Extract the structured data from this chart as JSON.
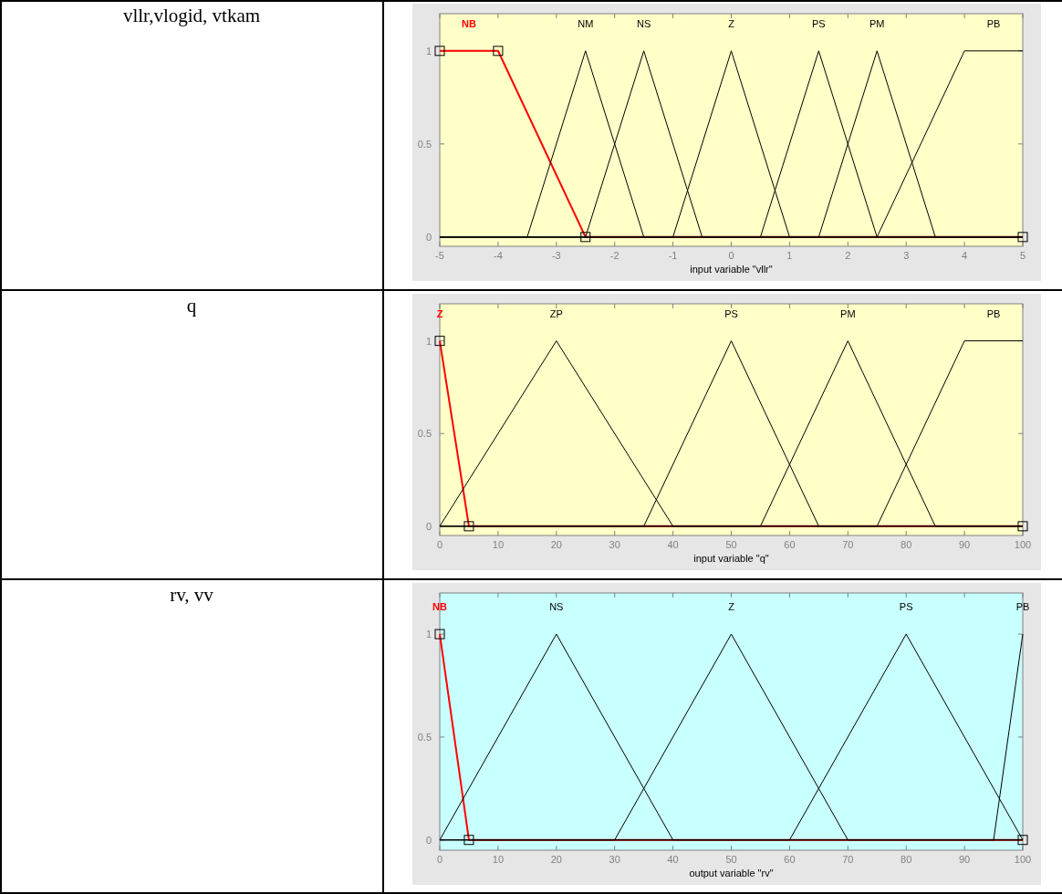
{
  "chart_data": [
    {
      "type": "line",
      "ylabel": "vllr,vlogid, vtkam",
      "xlabel": "input variable \"vllr\"",
      "xlim": [
        -5,
        5
      ],
      "xticks": [
        -5,
        -4,
        -3,
        -2,
        -1,
        0,
        1,
        2,
        3,
        4,
        5
      ],
      "ylim": [
        -0.05,
        1.2
      ],
      "yticks": [
        0,
        0.5,
        1
      ],
      "series": [
        {
          "name": "NB",
          "color": "#ff0000",
          "marker": "square",
          "x": [
            -5,
            -4,
            -2.5,
            5
          ],
          "values": [
            1,
            1,
            0,
            0
          ]
        },
        {
          "name": "NM",
          "color": "#000000",
          "x": [
            -5,
            -3.5,
            -2.5,
            -1.5,
            5
          ],
          "values": [
            0,
            0,
            1,
            0,
            0
          ]
        },
        {
          "name": "NS",
          "color": "#000000",
          "x": [
            -5,
            -2.5,
            -1.5,
            -0.5,
            5
          ],
          "values": [
            0,
            0,
            1,
            0,
            0
          ]
        },
        {
          "name": "Z",
          "color": "#000000",
          "x": [
            -5,
            -1,
            0,
            1,
            5
          ],
          "values": [
            0,
            0,
            1,
            0,
            0
          ]
        },
        {
          "name": "PS",
          "color": "#000000",
          "x": [
            -5,
            0.5,
            1.5,
            2.5,
            5
          ],
          "values": [
            0,
            0,
            1,
            0,
            0
          ]
        },
        {
          "name": "PM",
          "color": "#000000",
          "x": [
            -5,
            1.5,
            2.5,
            3.5,
            5
          ],
          "values": [
            0,
            0,
            1,
            0,
            0
          ]
        },
        {
          "name": "PB",
          "color": "#000000",
          "x": [
            -5,
            2.5,
            4,
            5
          ],
          "values": [
            0,
            0,
            1,
            1
          ]
        }
      ]
    },
    {
      "type": "line",
      "ylabel": "q",
      "xlabel": "input variable \"q\"",
      "xlim": [
        0,
        100
      ],
      "xticks": [
        0,
        10,
        20,
        30,
        40,
        50,
        60,
        70,
        80,
        90,
        100
      ],
      "ylim": [
        -0.05,
        1.2
      ],
      "yticks": [
        0,
        0.5,
        1
      ],
      "series": [
        {
          "name": "Z",
          "color": "#ff0000",
          "marker": "square",
          "x": [
            0,
            5,
            100
          ],
          "values": [
            1,
            0,
            0
          ]
        },
        {
          "name": "ZP",
          "color": "#000000",
          "x": [
            0,
            20,
            40,
            100
          ],
          "values": [
            0,
            1,
            0,
            0
          ]
        },
        {
          "name": "PS",
          "color": "#000000",
          "x": [
            0,
            35,
            50,
            65,
            100
          ],
          "values": [
            0,
            0,
            1,
            0,
            0
          ]
        },
        {
          "name": "PM",
          "color": "#000000",
          "x": [
            0,
            55,
            70,
            85,
            100
          ],
          "values": [
            0,
            0,
            1,
            0,
            0
          ]
        },
        {
          "name": "PB",
          "color": "#000000",
          "x": [
            0,
            75,
            90,
            100
          ],
          "values": [
            0,
            0,
            1,
            1
          ]
        }
      ]
    },
    {
      "type": "line",
      "ylabel": "rv, vv",
      "xlabel": "output variable \"rv\"",
      "xlim": [
        0,
        100
      ],
      "xticks": [
        0,
        10,
        20,
        30,
        40,
        50,
        60,
        70,
        80,
        90,
        100
      ],
      "ylim": [
        -0.05,
        1.2
      ],
      "yticks": [
        0,
        0.5,
        1
      ],
      "series": [
        {
          "name": "NB",
          "color": "#ff0000",
          "marker": "square",
          "x": [
            0,
            5,
            100
          ],
          "values": [
            1,
            0,
            0
          ]
        },
        {
          "name": "NS",
          "color": "#000000",
          "x": [
            0,
            20,
            40,
            100
          ],
          "values": [
            0,
            1,
            0,
            0
          ]
        },
        {
          "name": "Z",
          "color": "#000000",
          "x": [
            0,
            30,
            50,
            70,
            100
          ],
          "values": [
            0,
            0,
            1,
            0,
            0
          ]
        },
        {
          "name": "PS",
          "color": "#000000",
          "x": [
            0,
            60,
            80,
            100
          ],
          "values": [
            0,
            0,
            1,
            0
          ]
        },
        {
          "name": "PB",
          "color": "#000000",
          "x": [
            0,
            95,
            100
          ],
          "values": [
            0,
            0,
            1
          ]
        }
      ]
    }
  ]
}
